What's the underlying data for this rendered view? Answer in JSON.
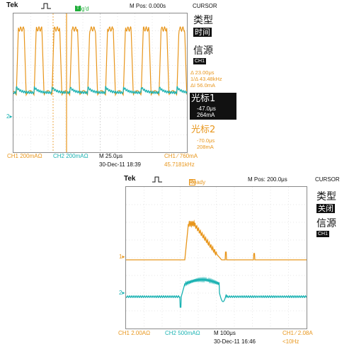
{
  "top": {
    "brand": "Tek",
    "trigger_label": "Trig'd",
    "trigger_badge": "T",
    "mpos": "M Pos: 0.000s",
    "menu": "CURSOR",
    "type_label": "类型",
    "type_value": "时间",
    "source_label": "信源",
    "source_value": "CH1",
    "cursor_readout": [
      "Δ 23.00μs",
      "1/Δ 43.48kHz",
      "ΔI 56.0mA"
    ],
    "cursor1_label": "光标1",
    "cursor1_values": [
      "-47.0μs",
      "264mA"
    ],
    "cursor2_label": "光标2",
    "cursor2_values": [
      "-70.0μs",
      "208mA"
    ],
    "ch1_scale": "CH1  200mAΩ",
    "ch2_scale": "CH2  200mAΩ",
    "timebase": "M 25.0μs",
    "trigger_level": "CH1 ⁄ 760mA",
    "date_time": "30-Dec-11 18:39",
    "frequency": "45.7181kHz",
    "colors": {
      "ch1": "#e8961c",
      "ch2": "#1ab2b2",
      "trig": "#1fae3a"
    }
  },
  "bottom": {
    "brand": "Tek",
    "trigger_label": "Ready",
    "trigger_badge": "R",
    "mpos": "M Pos: 200.0μs",
    "menu": "CURSOR",
    "type_label": "类型",
    "type_value": "关闭",
    "source_label": "信源",
    "source_value": "CH1",
    "ch1_marker": "1",
    "ch2_marker": "2",
    "ch1_scale": "CH1  2.00AΩ",
    "ch2_scale": "CH2  500mAΩ",
    "timebase": "M 100μs",
    "trigger_level": "CH1 ⁄ 2.08A",
    "date_time": "30-Dec-11 16:46",
    "frequency": "<10Hz"
  }
}
